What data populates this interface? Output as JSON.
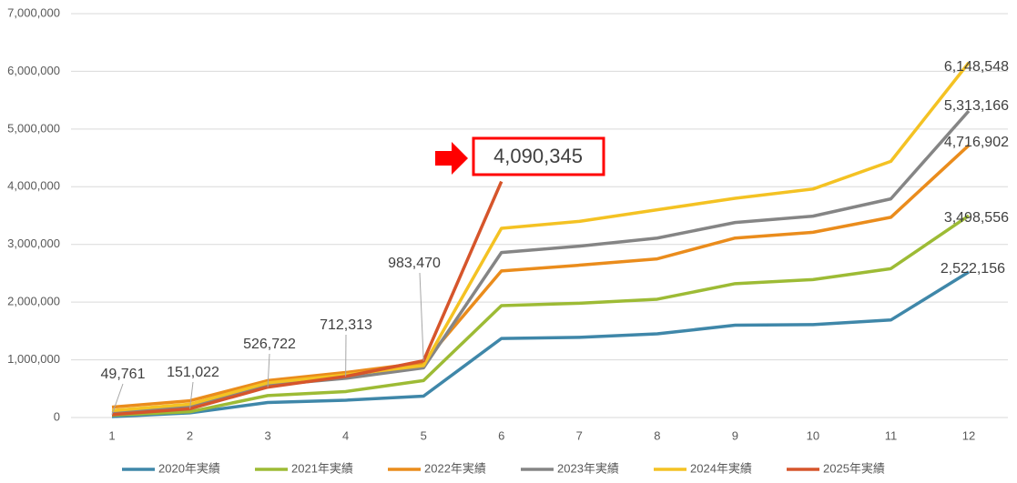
{
  "chart_data": {
    "type": "line",
    "categories": [
      "1",
      "2",
      "3",
      "4",
      "5",
      "6",
      "7",
      "8",
      "9",
      "10",
      "11",
      "12"
    ],
    "ylim": [
      0,
      7000000
    ],
    "yticks": [
      0,
      {
        "value": 1000000,
        "label": "1,000,000"
      },
      {
        "value": 2000000,
        "label": "2,000,000"
      },
      {
        "value": 3000000,
        "label": "3,000,000"
      },
      {
        "value": 4000000,
        "label": "4,000,000"
      },
      {
        "value": 5000000,
        "label": "5,000,000"
      },
      {
        "value": 6000000,
        "label": "6,000,000"
      },
      {
        "value": 7000000,
        "label": "7,000,000"
      }
    ],
    "grid": true,
    "legend": "bottom",
    "series": [
      {
        "name": "2020年実績",
        "color": "#3f87a9",
        "values": [
          15000,
          80000,
          260000,
          300000,
          370000,
          1370000,
          1390000,
          1450000,
          1600000,
          1610000,
          1690000,
          2522156
        ],
        "value_labels": [
          null,
          null,
          null,
          null,
          null,
          null,
          null,
          null,
          null,
          null,
          null,
          "2,522,156"
        ]
      },
      {
        "name": "2021年実績",
        "color": "#9dbb35",
        "values": [
          40000,
          100000,
          380000,
          450000,
          640000,
          1940000,
          1980000,
          2050000,
          2320000,
          2390000,
          2580000,
          3498556
        ],
        "value_labels": [
          null,
          null,
          null,
          null,
          null,
          null,
          null,
          null,
          null,
          null,
          null,
          "3,498,556"
        ]
      },
      {
        "name": "2022年実績",
        "color": "#ea8c1c",
        "values": [
          180000,
          290000,
          640000,
          780000,
          950000,
          2540000,
          2640000,
          2750000,
          3110000,
          3210000,
          3470000,
          4716902
        ],
        "value_labels": [
          null,
          null,
          null,
          null,
          null,
          null,
          null,
          null,
          null,
          null,
          null,
          "4,716,902"
        ]
      },
      {
        "name": "2023年実績",
        "color": "#858585",
        "values": [
          80000,
          200000,
          560000,
          680000,
          860000,
          2860000,
          2970000,
          3110000,
          3380000,
          3490000,
          3790000,
          5313166
        ],
        "value_labels": [
          null,
          null,
          null,
          null,
          null,
          null,
          null,
          null,
          null,
          null,
          null,
          "5,313,166"
        ]
      },
      {
        "name": "2024年実績",
        "color": "#f4c223",
        "values": [
          120000,
          230000,
          600000,
          740000,
          900000,
          3280000,
          3400000,
          3600000,
          3800000,
          3960000,
          4440000,
          6148548
        ],
        "value_labels": [
          null,
          null,
          null,
          null,
          null,
          null,
          null,
          null,
          null,
          null,
          null,
          "6,148,548"
        ]
      },
      {
        "name": "2025年実績",
        "color": "#d6552b",
        "values": [
          49761,
          151022,
          526722,
          712313,
          983470,
          4090345,
          null,
          null,
          null,
          null,
          null,
          null
        ],
        "value_labels": [
          "49,761",
          "151,022",
          "526,722",
          "712,313",
          "983,470",
          "4,090,345",
          null,
          null,
          null,
          null,
          null,
          null
        ]
      }
    ]
  }
}
